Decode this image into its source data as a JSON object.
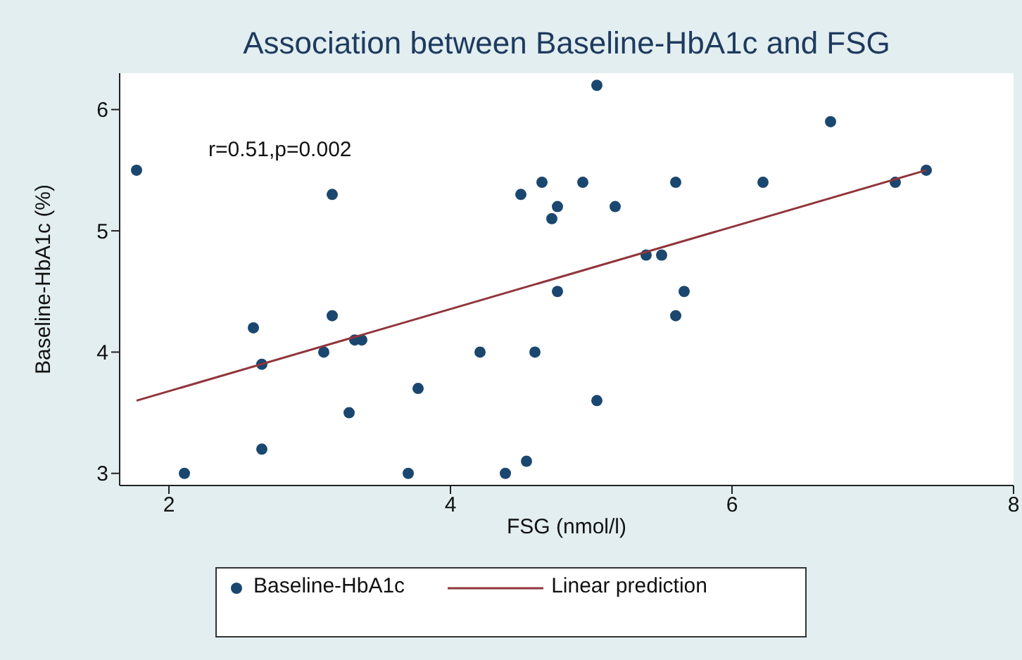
{
  "chart_data": {
    "type": "scatter",
    "title": "Association between Baseline-HbA1c and FSG",
    "xlabel": "FSG (nmol/l)",
    "ylabel": "Baseline-HbA1c (%)",
    "annotations": [
      "r=0.51,p=0.002"
    ],
    "xlim": [
      1.65,
      8
    ],
    "xticks": [
      2,
      4,
      6,
      8
    ],
    "ylim": [
      2.9,
      6.3
    ],
    "yticks": [
      3,
      4,
      5,
      6
    ],
    "grid": false,
    "legend": "bottom",
    "series": [
      {
        "name": "Baseline-HbA1c",
        "color": "#1a476f",
        "marker": "circle",
        "x": [
          1.77,
          2.11,
          2.6,
          2.66,
          2.66,
          3.1,
          3.16,
          3.16,
          3.28,
          3.32,
          3.37,
          3.7,
          3.77,
          4.21,
          4.39,
          4.5,
          4.54,
          4.6,
          4.65,
          4.72,
          4.76,
          4.76,
          4.94,
          5.04,
          5.04,
          5.17,
          5.39,
          5.5,
          5.6,
          5.6,
          5.66,
          6.22,
          6.7,
          7.16,
          7.38
        ],
        "values": [
          5.5,
          3.0,
          4.2,
          3.9,
          3.2,
          4.0,
          5.3,
          4.3,
          3.5,
          4.1,
          4.1,
          3.0,
          3.7,
          4.0,
          3.0,
          5.3,
          3.1,
          4.0,
          5.4,
          5.1,
          5.2,
          4.5,
          5.4,
          6.2,
          3.6,
          5.2,
          4.8,
          4.8,
          5.4,
          4.3,
          4.5,
          5.4,
          5.9,
          5.4,
          5.5
        ]
      },
      {
        "name": "Linear prediction",
        "type": "line",
        "marker": "none",
        "color": "#90353b",
        "x": [
          1.77,
          7.38
        ],
        "values": [
          3.6,
          5.5
        ]
      }
    ]
  }
}
